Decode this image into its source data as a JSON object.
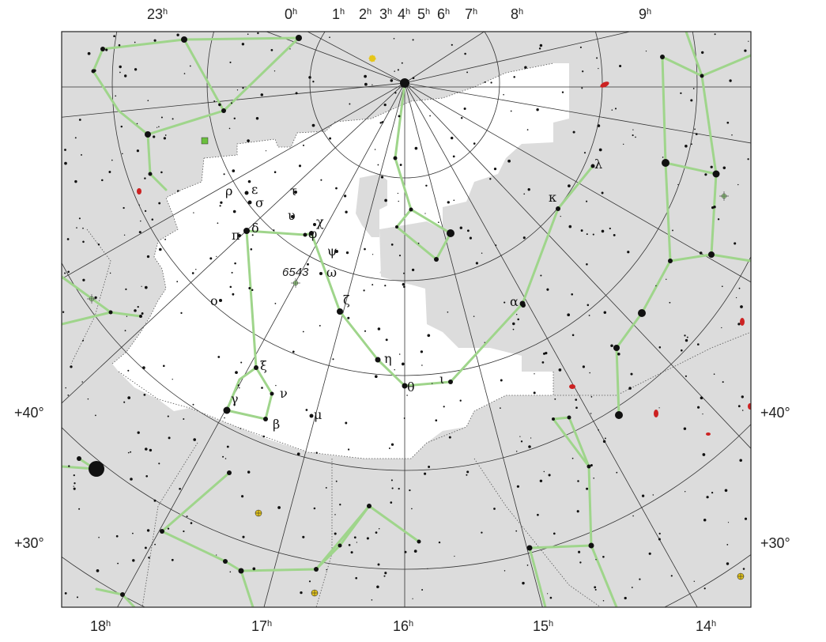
{
  "map": {
    "ra_top": [
      {
        "h": "23",
        "u": "h"
      },
      {
        "h": "0",
        "u": "h"
      },
      {
        "h": "1",
        "u": "h"
      },
      {
        "h": "2",
        "u": "h"
      },
      {
        "h": "3",
        "u": "h"
      },
      {
        "h": "4",
        "u": "h"
      },
      {
        "h": "5",
        "u": "h"
      },
      {
        "h": "6",
        "u": "h"
      },
      {
        "h": "7",
        "u": "h"
      },
      {
        "h": "8",
        "u": "h"
      },
      {
        "h": "9",
        "u": "h"
      }
    ],
    "ra_bottom": [
      {
        "h": "18",
        "u": "h"
      },
      {
        "h": "17",
        "u": "h"
      },
      {
        "h": "16",
        "u": "h"
      },
      {
        "h": "15",
        "u": "h"
      },
      {
        "h": "14",
        "u": "h"
      }
    ],
    "dec_left": [
      "+40°",
      "+30°"
    ],
    "dec_right": [
      "+40°",
      "+30°"
    ],
    "star_labels": [
      "ρ",
      "ε",
      "τ",
      "σ",
      "υ",
      "χ",
      "π",
      "δ",
      "φ",
      "ψ",
      "6543",
      "ω",
      "ο",
      "ζ",
      "η",
      "ξ",
      "ν",
      "γ",
      "β",
      "μ",
      "θ",
      "ι",
      "α",
      "κ",
      "λ"
    ],
    "colors": {
      "outside": "#dcdcdc",
      "inside": "#ffffff",
      "line": "#9fd58b",
      "grid": "#222222",
      "galaxy": "#cc2222",
      "cluster": "#e6c619"
    }
  }
}
